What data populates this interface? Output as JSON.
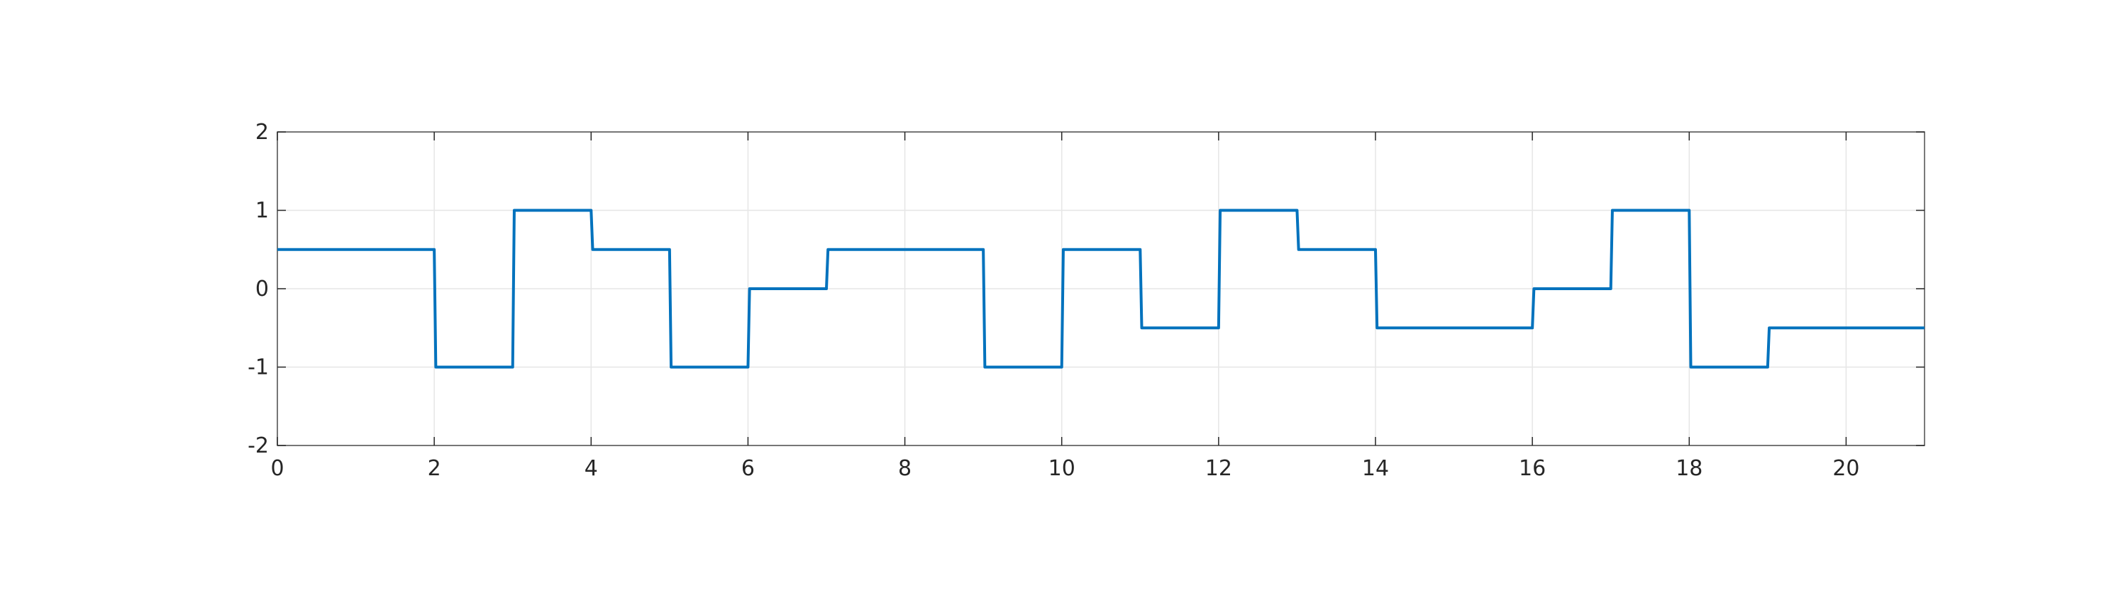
{
  "chart_data": {
    "type": "line",
    "title": "",
    "xlabel": "",
    "ylabel": "",
    "xlim": [
      0,
      21
    ],
    "ylim": [
      -2,
      2
    ],
    "x_ticks": [
      0,
      2,
      4,
      6,
      8,
      10,
      12,
      14,
      16,
      18,
      20
    ],
    "x_tick_labels": [
      "0",
      "2",
      "4",
      "6",
      "8",
      "10",
      "12",
      "14",
      "16",
      "18",
      "20"
    ],
    "y_ticks": [
      2,
      1,
      0,
      -1,
      -2
    ],
    "y_tick_labels": [
      "2",
      "1",
      "0",
      "-1",
      "-2"
    ],
    "grid": true,
    "line_style": "step",
    "series": [
      {
        "color": "#0072BD",
        "x": [
          0,
          2,
          2.02,
          3,
          3.02,
          4,
          4.02,
          5,
          5.02,
          6,
          6.02,
          7,
          7.02,
          9,
          9.02,
          10,
          10.02,
          11,
          11.02,
          12,
          12.02,
          13,
          13.02,
          14,
          14.02,
          16,
          16.02,
          17,
          17.02,
          18,
          18.02,
          19,
          19.02,
          21
        ],
        "y": [
          0.5,
          0.5,
          -1,
          -1,
          1,
          1,
          0.5,
          0.5,
          -1,
          -1,
          0,
          0,
          0.5,
          0.5,
          -1,
          -1,
          0.5,
          0.5,
          -0.5,
          -0.5,
          1,
          1,
          0.5,
          0.5,
          -0.5,
          -0.5,
          0,
          0,
          1,
          1,
          -1,
          -1,
          -0.5,
          -0.5
        ]
      }
    ]
  },
  "colors": {
    "line": "#0072BD",
    "axis": "#262626",
    "grid": "#e6e6e6",
    "frame": "#4d4d4d"
  }
}
